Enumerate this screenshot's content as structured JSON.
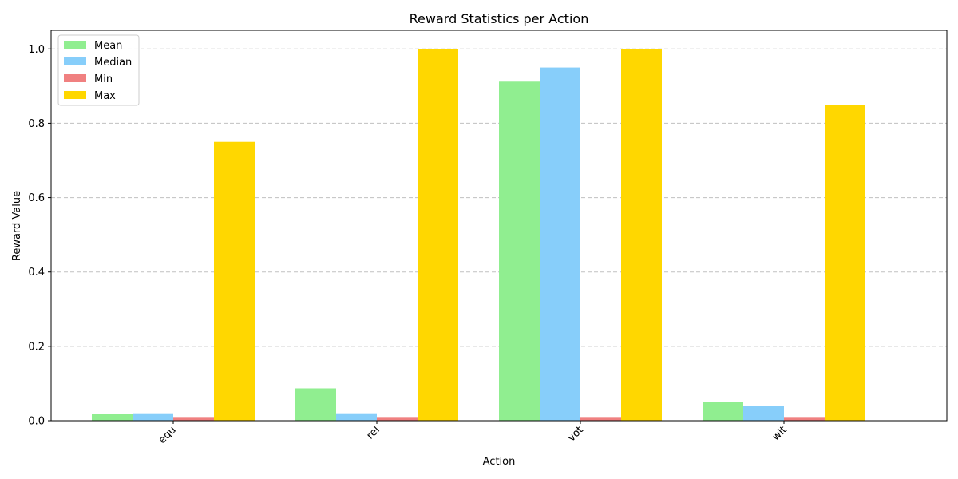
{
  "chart_data": {
    "type": "bar",
    "title": "Reward Statistics per Action",
    "xlabel": "Action",
    "ylabel": "Reward Value",
    "categories": [
      "equ",
      "rel",
      "vot",
      "wit"
    ],
    "series": [
      {
        "name": "Mean",
        "color": "#90ee90",
        "values": [
          0.018,
          0.087,
          0.912,
          0.05
        ]
      },
      {
        "name": "Median",
        "color": "#87cefa",
        "values": [
          0.02,
          0.02,
          0.95,
          0.04
        ]
      },
      {
        "name": "Min",
        "color": "#f08080",
        "values": [
          0.01,
          0.01,
          0.01,
          0.01
        ]
      },
      {
        "name": "Max",
        "color": "#ffd700",
        "values": [
          0.75,
          1.0,
          1.0,
          0.85
        ]
      }
    ],
    "ylim": [
      0,
      1.05
    ],
    "yticks": [
      "0.0",
      "0.2",
      "0.4",
      "0.6",
      "0.8",
      "1.0"
    ],
    "grid": "y-dashed",
    "legend_position": "top-left",
    "x_tick_rotation": 45
  }
}
